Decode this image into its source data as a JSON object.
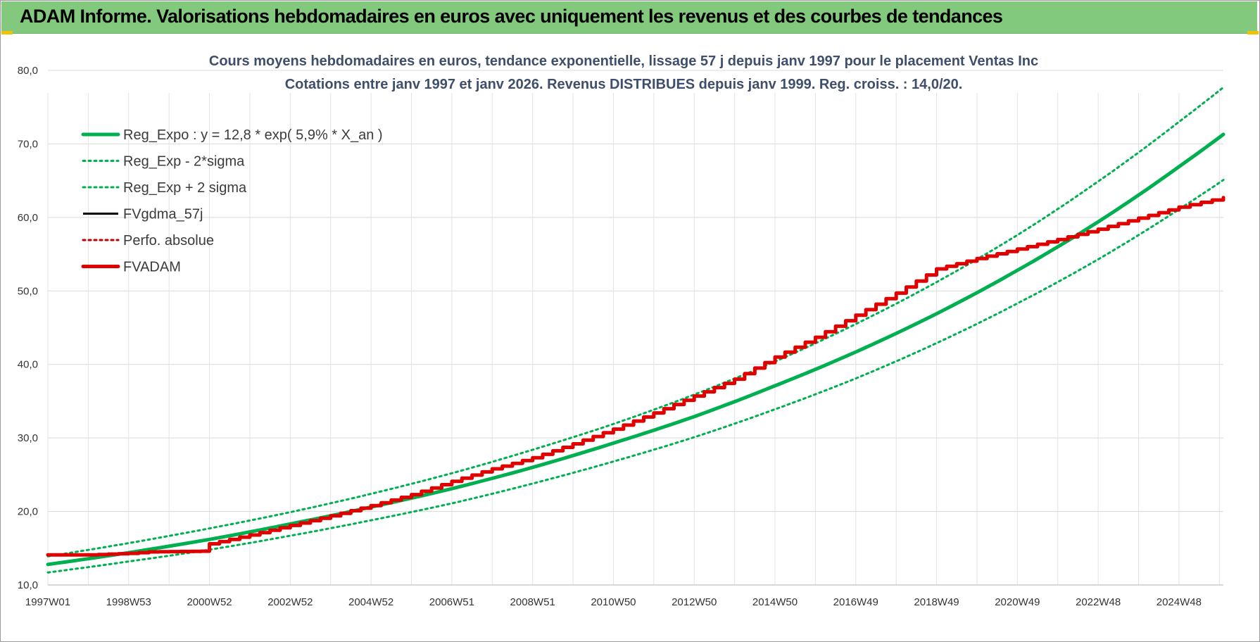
{
  "banner": {
    "title": "ADAM Informe. Valorisations hebdomadaires en euros avec uniquement les revenus et des courbes de tendances"
  },
  "chart_data": {
    "type": "line",
    "title_line1": "Cours moyens hebdomadaires en euros, tendance exponentielle, lissage 57 j depuis janv 1997 pour le placement Ventas Inc",
    "title_line2": "Cotations entre janv 1997 et janv 2026. Revenus DISTRIBUES depuis janv 1999. Reg. croiss. : 14,0/20.",
    "xlabel": "",
    "ylabel": "",
    "x_range": [
      1997.0,
      2026.1
    ],
    "ylim": [
      10,
      80
    ],
    "y_ticks": [
      "10,0",
      "20,0",
      "30,0",
      "40,0",
      "50,0",
      "60,0",
      "70,0",
      "80,0"
    ],
    "y_tick_values": [
      10,
      20,
      30,
      40,
      50,
      60,
      70,
      80
    ],
    "x_tick_labels": [
      "1997W01",
      "1998W53",
      "2000W52",
      "2002W52",
      "2004W52",
      "2006W51",
      "2008W51",
      "2010W50",
      "2012W50",
      "2014W50",
      "2016W49",
      "2018W49",
      "2020W49",
      "2022W48",
      "2024W48"
    ],
    "x_tick_values": [
      1997.0,
      1999.0,
      2001.0,
      2003.0,
      2005.0,
      2007.0,
      2009.0,
      2011.0,
      2013.0,
      2015.0,
      2017.0,
      2019.0,
      2021.0,
      2023.0,
      2025.0
    ],
    "grid": true,
    "legend_position": "top-left",
    "series": [
      {
        "name": "Reg_Expo : y = 12,8 * exp( 5,9% *  X_an )",
        "color": "#00b050",
        "style": "solid-thick",
        "x": [
          1997,
          1999,
          2001,
          2003,
          2005,
          2007,
          2009,
          2011,
          2013,
          2015,
          2017,
          2019,
          2021,
          2023,
          2025,
          2026.1
        ],
        "values": [
          12.8,
          14.4,
          16.2,
          18.3,
          20.6,
          23.1,
          26.0,
          29.3,
          32.9,
          37.1,
          41.7,
          46.9,
          52.8,
          59.4,
          66.9,
          71.3
        ]
      },
      {
        "name": "Reg_Exp - 2*sigma",
        "color": "#00b050",
        "style": "dotted",
        "x": [
          1997,
          1999,
          2001,
          2003,
          2005,
          2007,
          2009,
          2011,
          2013,
          2015,
          2017,
          2019,
          2021,
          2023,
          2025,
          2026.1
        ],
        "values": [
          11.7,
          13.2,
          14.8,
          16.7,
          18.8,
          21.1,
          23.8,
          26.8,
          30.1,
          33.9,
          38.1,
          42.9,
          48.3,
          54.3,
          61.1,
          65.1
        ]
      },
      {
        "name": "Reg_Exp + 2 sigma",
        "color": "#00b050",
        "style": "dotted",
        "x": [
          1997,
          1999,
          2001,
          2003,
          2005,
          2007,
          2009,
          2011,
          2013,
          2015,
          2017,
          2019,
          2021,
          2023,
          2025,
          2026.1
        ],
        "values": [
          13.9,
          15.7,
          17.7,
          19.9,
          22.4,
          25.2,
          28.4,
          31.9,
          35.9,
          40.4,
          45.5,
          51.2,
          57.6,
          64.9,
          73.0,
          77.7
        ]
      },
      {
        "name": "FVgdma_57j",
        "color": "#000000",
        "style": "solid",
        "x": [],
        "values": []
      },
      {
        "name": "Perfo. absolue",
        "color": "#c00000",
        "style": "dotted",
        "x": [],
        "values": []
      },
      {
        "name": "FVADAM",
        "color": "#e00000",
        "style": "solid-thick-stepped",
        "x": [
          1997,
          1998,
          1999,
          1999.5,
          2000.8,
          2001,
          2002,
          2003,
          2004,
          2005,
          2006,
          2007,
          2008,
          2009,
          2010,
          2011,
          2012,
          2013,
          2014,
          2015,
          2016,
          2017,
          2018,
          2019,
          2020,
          2021,
          2022,
          2023,
          2024,
          2025,
          2026.1
        ],
        "values": [
          14.1,
          14.1,
          14.3,
          14.5,
          14.6,
          15.6,
          16.8,
          18.1,
          19.4,
          20.8,
          22.3,
          24.1,
          25.8,
          27.3,
          29.2,
          31.2,
          33.4,
          35.7,
          38.0,
          41.0,
          43.7,
          46.7,
          49.7,
          53.0,
          54.4,
          55.7,
          57.0,
          58.4,
          59.9,
          61.4,
          62.7
        ]
      }
    ]
  }
}
